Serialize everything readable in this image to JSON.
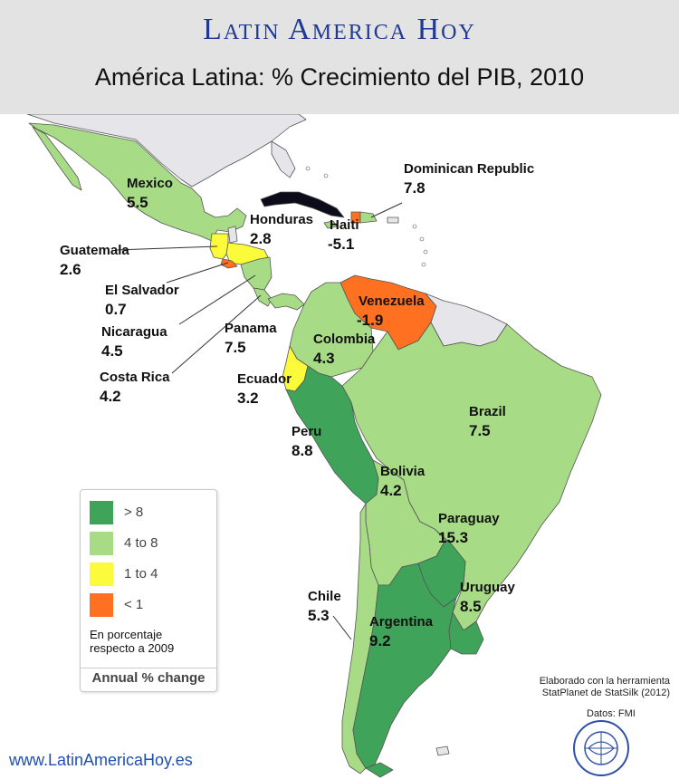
{
  "header": {
    "brand": "Latin America Hoy",
    "subtitle": "América Latina: % Crecimiento del PIB, 2010"
  },
  "countries": [
    {
      "name": "Mexico",
      "value": "5.5"
    },
    {
      "name": "Guatemala",
      "value": "2.6"
    },
    {
      "name": "Honduras",
      "value": "2.8"
    },
    {
      "name": "Haiti",
      "value": "-5.1"
    },
    {
      "name": "Dominican Republic",
      "value": "7.8"
    },
    {
      "name": "El Salvador",
      "value": "0.7"
    },
    {
      "name": "Nicaragua",
      "value": "4.5"
    },
    {
      "name": "Costa Rica",
      "value": "4.2"
    },
    {
      "name": "Panama",
      "value": "7.5"
    },
    {
      "name": "Venezuela",
      "value": "-1.9"
    },
    {
      "name": "Colombia",
      "value": "4.3"
    },
    {
      "name": "Ecuador",
      "value": "3.2"
    },
    {
      "name": "Peru",
      "value": "8.8"
    },
    {
      "name": "Brazil",
      "value": "7.5"
    },
    {
      "name": "Bolivia",
      "value": "4.2"
    },
    {
      "name": "Paraguay",
      "value": "15.3"
    },
    {
      "name": "Chile",
      "value": "5.3"
    },
    {
      "name": "Uruguay",
      "value": "8.5"
    },
    {
      "name": "Argentina",
      "value": "9.2"
    }
  ],
  "legend": {
    "items": [
      {
        "label": "> 8",
        "color": "#3fa35a"
      },
      {
        "label": "4 to 8",
        "color": "#a8db86"
      },
      {
        "label": "1 to 4",
        "color": "#fbfb3c"
      },
      {
        "label": "< 1",
        "color": "#ff7020"
      }
    ],
    "note": "En porcentaje respecto a 2009",
    "footer": "Annual % change"
  },
  "colors": {
    "no_data": "#e6e6ea",
    "cuba": "#0b0b1a",
    "border": "#555555"
  },
  "credits": {
    "line1": "Elaborado con la herramienta",
    "line2": "StatPlanet de StatSilk (2012)",
    "source": "Datos: FMI"
  },
  "seal_text": "INTERNATIONAL MONETARY FUND",
  "footer_url": "www.LatinAmericaHoy.es"
}
